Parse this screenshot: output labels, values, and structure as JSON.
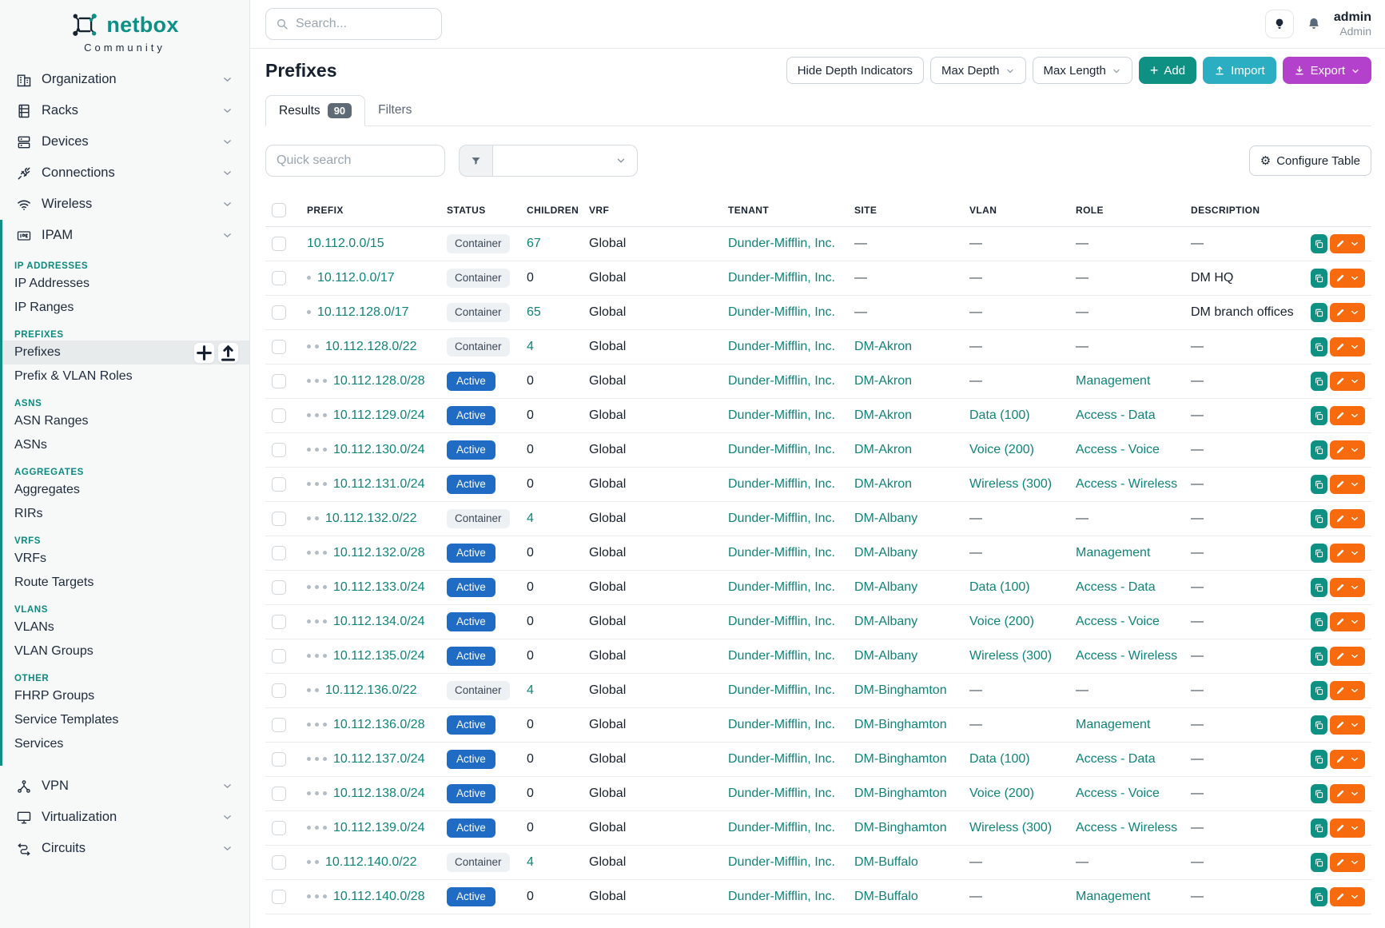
{
  "brand": {
    "name": "netbox",
    "subtitle": "Community"
  },
  "topbar": {
    "search_placeholder": "Search...",
    "user_name": "admin",
    "user_role": "Admin",
    "icons": [
      "lightbulb-icon",
      "bell-icon"
    ]
  },
  "sidebar": {
    "top_items": [
      {
        "label": "Organization",
        "icon": "building-icon"
      },
      {
        "label": "Racks",
        "icon": "rack-icon"
      },
      {
        "label": "Devices",
        "icon": "devices-icon"
      },
      {
        "label": "Connections",
        "icon": "plug-icon"
      },
      {
        "label": "Wireless",
        "icon": "wifi-icon"
      }
    ],
    "ipam": {
      "label": "IPAM",
      "icon": "ipam-icon",
      "sections": [
        {
          "heading": "IP ADDRESSES",
          "items": [
            {
              "label": "IP Addresses"
            },
            {
              "label": "IP Ranges"
            }
          ]
        },
        {
          "heading": "PREFIXES",
          "items": [
            {
              "label": "Prefixes",
              "active": true,
              "actions": [
                "plus-icon",
                "upload-icon"
              ]
            },
            {
              "label": "Prefix & VLAN Roles"
            }
          ]
        },
        {
          "heading": "ASNS",
          "items": [
            {
              "label": "ASN Ranges"
            },
            {
              "label": "ASNs"
            }
          ]
        },
        {
          "heading": "AGGREGATES",
          "items": [
            {
              "label": "Aggregates"
            },
            {
              "label": "RIRs"
            }
          ]
        },
        {
          "heading": "VRFS",
          "items": [
            {
              "label": "VRFs"
            },
            {
              "label": "Route Targets"
            }
          ]
        },
        {
          "heading": "VLANS",
          "items": [
            {
              "label": "VLANs"
            },
            {
              "label": "VLAN Groups"
            }
          ]
        },
        {
          "heading": "OTHER",
          "items": [
            {
              "label": "FHRP Groups"
            },
            {
              "label": "Service Templates"
            },
            {
              "label": "Services"
            }
          ]
        }
      ]
    },
    "bottom_items": [
      {
        "label": "VPN",
        "icon": "vpn-icon"
      },
      {
        "label": "Virtualization",
        "icon": "monitor-icon"
      },
      {
        "label": "Circuits",
        "icon": "circuit-icon"
      }
    ]
  },
  "page": {
    "title": "Prefixes",
    "toolbar": {
      "hide_depth": "Hide Depth Indicators",
      "max_depth": "Max Depth",
      "max_length": "Max Length",
      "add": "Add",
      "import": "Import",
      "export": "Export"
    },
    "tabs": [
      {
        "label": "Results",
        "count": "90",
        "active": true
      },
      {
        "label": "Filters",
        "active": false
      }
    ],
    "quick_search_placeholder": "Quick search",
    "configure_table": "Configure Table"
  },
  "table": {
    "columns": [
      "PREFIX",
      "STATUS",
      "CHILDREN",
      "VRF",
      "TENANT",
      "SITE",
      "VLAN",
      "ROLE",
      "DESCRIPTION"
    ],
    "empty_value": "—",
    "rows": [
      {
        "depth": 0,
        "prefix": "10.112.0.0/15",
        "status": "Container",
        "children": "67",
        "vrf": "Global",
        "tenant": "Dunder-Mifflin, Inc.",
        "site": "—",
        "vlan": "—",
        "role": "—",
        "description": "—"
      },
      {
        "depth": 1,
        "prefix": "10.112.0.0/17",
        "status": "Container",
        "children": "0",
        "vrf": "Global",
        "tenant": "Dunder-Mifflin, Inc.",
        "site": "—",
        "vlan": "—",
        "role": "—",
        "description": "DM HQ"
      },
      {
        "depth": 1,
        "prefix": "10.112.128.0/17",
        "status": "Container",
        "children": "65",
        "vrf": "Global",
        "tenant": "Dunder-Mifflin, Inc.",
        "site": "—",
        "vlan": "—",
        "role": "—",
        "description": "DM branch offices"
      },
      {
        "depth": 2,
        "prefix": "10.112.128.0/22",
        "status": "Container",
        "children": "4",
        "vrf": "Global",
        "tenant": "Dunder-Mifflin, Inc.",
        "site": "DM-Akron",
        "vlan": "—",
        "role": "—",
        "description": "—"
      },
      {
        "depth": 3,
        "prefix": "10.112.128.0/28",
        "status": "Active",
        "children": "0",
        "vrf": "Global",
        "tenant": "Dunder-Mifflin, Inc.",
        "site": "DM-Akron",
        "vlan": "—",
        "role": "Management",
        "description": "—"
      },
      {
        "depth": 3,
        "prefix": "10.112.129.0/24",
        "status": "Active",
        "children": "0",
        "vrf": "Global",
        "tenant": "Dunder-Mifflin, Inc.",
        "site": "DM-Akron",
        "vlan": "Data (100)",
        "role": "Access - Data",
        "description": "—"
      },
      {
        "depth": 3,
        "prefix": "10.112.130.0/24",
        "status": "Active",
        "children": "0",
        "vrf": "Global",
        "tenant": "Dunder-Mifflin, Inc.",
        "site": "DM-Akron",
        "vlan": "Voice (200)",
        "role": "Access - Voice",
        "description": "—"
      },
      {
        "depth": 3,
        "prefix": "10.112.131.0/24",
        "status": "Active",
        "children": "0",
        "vrf": "Global",
        "tenant": "Dunder-Mifflin, Inc.",
        "site": "DM-Akron",
        "vlan": "Wireless (300)",
        "role": "Access - Wireless",
        "description": "—"
      },
      {
        "depth": 2,
        "prefix": "10.112.132.0/22",
        "status": "Container",
        "children": "4",
        "vrf": "Global",
        "tenant": "Dunder-Mifflin, Inc.",
        "site": "DM-Albany",
        "vlan": "—",
        "role": "—",
        "description": "—"
      },
      {
        "depth": 3,
        "prefix": "10.112.132.0/28",
        "status": "Active",
        "children": "0",
        "vrf": "Global",
        "tenant": "Dunder-Mifflin, Inc.",
        "site": "DM-Albany",
        "vlan": "—",
        "role": "Management",
        "description": "—"
      },
      {
        "depth": 3,
        "prefix": "10.112.133.0/24",
        "status": "Active",
        "children": "0",
        "vrf": "Global",
        "tenant": "Dunder-Mifflin, Inc.",
        "site": "DM-Albany",
        "vlan": "Data (100)",
        "role": "Access - Data",
        "description": "—"
      },
      {
        "depth": 3,
        "prefix": "10.112.134.0/24",
        "status": "Active",
        "children": "0",
        "vrf": "Global",
        "tenant": "Dunder-Mifflin, Inc.",
        "site": "DM-Albany",
        "vlan": "Voice (200)",
        "role": "Access - Voice",
        "description": "—"
      },
      {
        "depth": 3,
        "prefix": "10.112.135.0/24",
        "status": "Active",
        "children": "0",
        "vrf": "Global",
        "tenant": "Dunder-Mifflin, Inc.",
        "site": "DM-Albany",
        "vlan": "Wireless (300)",
        "role": "Access - Wireless",
        "description": "—"
      },
      {
        "depth": 2,
        "prefix": "10.112.136.0/22",
        "status": "Container",
        "children": "4",
        "vrf": "Global",
        "tenant": "Dunder-Mifflin, Inc.",
        "site": "DM-Binghamton",
        "vlan": "—",
        "role": "—",
        "description": "—"
      },
      {
        "depth": 3,
        "prefix": "10.112.136.0/28",
        "status": "Active",
        "children": "0",
        "vrf": "Global",
        "tenant": "Dunder-Mifflin, Inc.",
        "site": "DM-Binghamton",
        "vlan": "—",
        "role": "Management",
        "description": "—"
      },
      {
        "depth": 3,
        "prefix": "10.112.137.0/24",
        "status": "Active",
        "children": "0",
        "vrf": "Global",
        "tenant": "Dunder-Mifflin, Inc.",
        "site": "DM-Binghamton",
        "vlan": "Data (100)",
        "role": "Access - Data",
        "description": "—"
      },
      {
        "depth": 3,
        "prefix": "10.112.138.0/24",
        "status": "Active",
        "children": "0",
        "vrf": "Global",
        "tenant": "Dunder-Mifflin, Inc.",
        "site": "DM-Binghamton",
        "vlan": "Voice (200)",
        "role": "Access - Voice",
        "description": "—"
      },
      {
        "depth": 3,
        "prefix": "10.112.139.0/24",
        "status": "Active",
        "children": "0",
        "vrf": "Global",
        "tenant": "Dunder-Mifflin, Inc.",
        "site": "DM-Binghamton",
        "vlan": "Wireless (300)",
        "role": "Access - Wireless",
        "description": "—"
      },
      {
        "depth": 2,
        "prefix": "10.112.140.0/22",
        "status": "Container",
        "children": "4",
        "vrf": "Global",
        "tenant": "Dunder-Mifflin, Inc.",
        "site": "DM-Buffalo",
        "vlan": "—",
        "role": "—",
        "description": "—"
      },
      {
        "depth": 3,
        "prefix": "10.112.140.0/28",
        "status": "Active",
        "children": "0",
        "vrf": "Global",
        "tenant": "Dunder-Mifflin, Inc.",
        "site": "DM-Buffalo",
        "vlan": "—",
        "role": "Management",
        "description": "—"
      }
    ]
  },
  "colors": {
    "accent_teal": "#0e9183",
    "link_teal": "#0f8478",
    "active_badge_blue": "#206bc4",
    "import_cyan": "#2badc2",
    "export_purple": "#b341cc",
    "edit_orange": "#f76b0e",
    "results_badge_gray": "#5f6a77"
  }
}
